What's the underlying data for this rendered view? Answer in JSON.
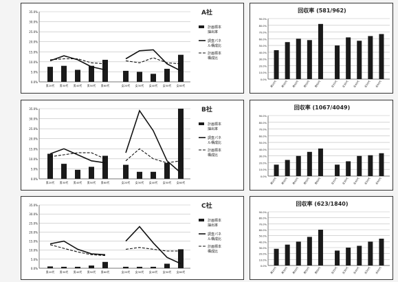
{
  "colors": {
    "bar": "#1a1a1a",
    "line": "#111111",
    "grid": "#bdbdbd",
    "axis": "#555555"
  },
  "chart_data": [
    {
      "type": "bar+line",
      "title": "A社",
      "ylim": [
        0,
        35
      ],
      "yticks": [
        "0.0%",
        "5.0%",
        "10.0%",
        "15.0%",
        "20.0%",
        "25.0%",
        "30.0%",
        "35.0%"
      ],
      "ytick_values": [
        0,
        5,
        10,
        15,
        20,
        25,
        30,
        35
      ],
      "categories": [
        "男20代",
        "男30代",
        "男40代",
        "男50代",
        "男60代",
        "女20代",
        "女30代",
        "女40代",
        "女50代",
        "女60代"
      ],
      "series": [
        {
          "name": "計画標本抽出率",
          "kind": "bar",
          "values": [
            7.5,
            8.0,
            6.0,
            8.0,
            11.0,
            5.5,
            5.0,
            4.0,
            6.5,
            13.5
          ]
        },
        {
          "name": "調査パネル構成比",
          "kind": "line",
          "values": [
            10.5,
            13.0,
            11.0,
            7.5,
            6.0,
            11.5,
            15.5,
            16.0,
            9.0,
            5.5
          ]
        },
        {
          "name": "計画標本構成比",
          "kind": "line",
          "values": [
            11.0,
            11.5,
            11.5,
            9.5,
            9.0,
            10.5,
            9.5,
            12.0,
            9.5,
            9.0
          ]
        }
      ],
      "legend": [
        "計画標本抽出率",
        "調査パネル構成比",
        "計画標本構成比"
      ]
    },
    {
      "type": "bar",
      "title": "回収率 (581/962)",
      "ylim": [
        0,
        90
      ],
      "yticks": [
        "0.0%",
        "10.0%",
        "20.0%",
        "30.0%",
        "40.0%",
        "50.0%",
        "60.0%",
        "70.0%",
        "80.0%",
        "90.0%"
      ],
      "ytick_values": [
        0,
        10,
        20,
        30,
        40,
        50,
        60,
        70,
        80,
        90
      ],
      "categories": [
        "男20代",
        "男30代",
        "男40代",
        "男50代",
        "男60代",
        "女20代",
        "女30代",
        "女40代",
        "女50代",
        "女60代"
      ],
      "values": [
        43,
        55,
        60,
        58,
        82,
        50,
        62,
        57,
        64,
        67
      ]
    },
    {
      "type": "bar+line",
      "title": "B社",
      "ylim": [
        0,
        35
      ],
      "yticks": [
        "0.0%",
        "5.0%",
        "10.0%",
        "15.0%",
        "20.0%",
        "25.0%",
        "30.0%",
        "35.0%"
      ],
      "ytick_values": [
        0,
        5,
        10,
        15,
        20,
        25,
        30,
        35
      ],
      "categories": [
        "男20代",
        "男30代",
        "男40代",
        "男50代",
        "男60代",
        "女20代",
        "女30代",
        "女40代",
        "女50代",
        "女60代"
      ],
      "series": [
        {
          "name": "計画標本抽出率",
          "kind": "bar",
          "values": [
            12.5,
            7.5,
            4.5,
            6.0,
            11.5,
            7.0,
            3.5,
            3.5,
            8.0,
            35.0
          ]
        },
        {
          "name": "調査パネル構成比",
          "kind": "line",
          "values": [
            12.5,
            15.0,
            12.0,
            9.0,
            8.0,
            13.0,
            34.0,
            24.0,
            9.0,
            3.0
          ]
        },
        {
          "name": "計画標本構成比",
          "kind": "line",
          "values": [
            11.0,
            12.0,
            13.0,
            13.0,
            10.0,
            9.0,
            15.0,
            10.0,
            8.0,
            9.0
          ]
        }
      ],
      "legend": [
        "計画標本抽出率",
        "調査パネル構成比",
        "計画標本構成比"
      ]
    },
    {
      "type": "bar",
      "title": "回収率 (1067/4049)",
      "ylim": [
        0,
        90
      ],
      "yticks": [
        "0.0%",
        "10.0%",
        "20.0%",
        "30.0%",
        "40.0%",
        "50.0%",
        "60.0%",
        "70.0%",
        "80.0%",
        "90.0%"
      ],
      "ytick_values": [
        0,
        10,
        20,
        30,
        40,
        50,
        60,
        70,
        80,
        90
      ],
      "categories": [
        "男20代",
        "男30代",
        "男40代",
        "男50代",
        "男60代",
        "女20代",
        "女30代",
        "女40代",
        "女50代",
        "女60代"
      ],
      "values": [
        17,
        24,
        30,
        36,
        41,
        17,
        22,
        30,
        31,
        34
      ]
    },
    {
      "type": "bar+line",
      "title": "C社",
      "ylim": [
        0,
        35
      ],
      "yticks": [
        "0.0%",
        "5.0%",
        "10.0%",
        "15.0%",
        "20.0%",
        "25.0%",
        "30.0%",
        "35.0%"
      ],
      "ytick_values": [
        0,
        5,
        10,
        15,
        20,
        25,
        30,
        35
      ],
      "categories": [
        "男20代",
        "男30代",
        "男40代",
        "男50代",
        "男60代",
        "女20代",
        "女30代",
        "女40代",
        "女50代",
        "女60代"
      ],
      "series": [
        {
          "name": "計画標本抽出率",
          "kind": "bar",
          "values": [
            1.0,
            0.8,
            0.8,
            1.5,
            3.5,
            0.8,
            0.8,
            0.8,
            2.5,
            10.5
          ]
        },
        {
          "name": "調査パネル構成比",
          "kind": "line",
          "values": [
            13.5,
            15.0,
            10.5,
            8.0,
            7.5,
            15.0,
            23.0,
            14.0,
            6.0,
            2.5
          ]
        },
        {
          "name": "計画標本構成比",
          "kind": "line",
          "values": [
            13.0,
            11.0,
            9.0,
            7.5,
            7.0,
            10.5,
            11.5,
            10.5,
            9.5,
            9.5
          ]
        }
      ],
      "legend": [
        "計画標本抽出率",
        "調査パネル構成比",
        "計画標本構成比"
      ]
    },
    {
      "type": "bar",
      "title": "回収率 (623/1840)",
      "ylim": [
        0,
        90
      ],
      "yticks": [
        "0.0%",
        "10.0%",
        "20.0%",
        "30.0%",
        "40.0%",
        "50.0%",
        "60.0%",
        "70.0%",
        "80.0%",
        "90.0%"
      ],
      "ytick_values": [
        0,
        10,
        20,
        30,
        40,
        50,
        60,
        70,
        80,
        90
      ],
      "categories": [
        "男20代",
        "男30代",
        "男40代",
        "男50代",
        "男60代",
        "女20代",
        "女30代",
        "女40代",
        "女50代",
        "女60代"
      ],
      "values": [
        28,
        35,
        40,
        48,
        60,
        25,
        30,
        33,
        40,
        45
      ]
    }
  ]
}
